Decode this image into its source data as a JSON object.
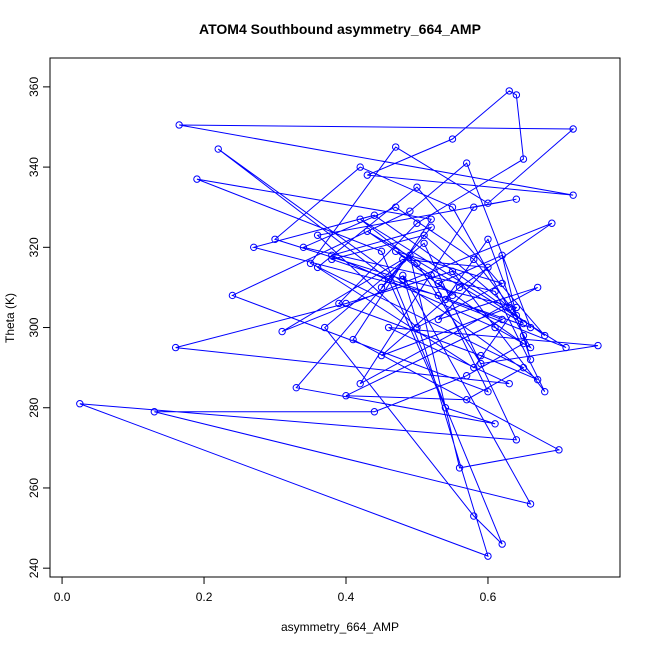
{
  "chart_data": {
    "type": "line",
    "markers": true,
    "title": "ATOM4 Southbound asymmetry_664_AMP",
    "xlabel": "asymmetry_664_AMP",
    "ylabel": "Theta (K)",
    "color": "#0000ff",
    "xlim": [
      -0.017,
      0.786
    ],
    "ylim": [
      237.8,
      367.2
    ],
    "xticks": [
      {
        "value": 0,
        "label": "0.0"
      },
      0.2,
      0.4,
      0.6
    ],
    "yticks": [
      240,
      260,
      280,
      300,
      320,
      340,
      360
    ],
    "x": [
      0.45,
      0.52,
      0.38,
      0.61,
      0.66,
      0.55,
      0.42,
      0.3,
      0.48,
      0.64,
      0.58,
      0.36,
      0.5,
      0.68,
      0.44,
      0.27,
      0.53,
      0.62,
      0.4,
      0.57,
      0.65,
      0.35,
      0.47,
      0.6,
      0.72,
      0.165,
      0.72,
      0.43,
      0.55,
      0.63,
      0.64,
      0.65,
      0.5,
      0.39,
      0.59,
      0.67,
      0.22,
      0.46,
      0.54,
      0.61,
      0.33,
      0.49,
      0.56,
      0.7,
      0.41,
      0.52,
      0.19,
      0.45,
      0.62,
      0.58,
      0.37,
      0.51,
      0.64,
      0.025,
      0.6,
      0.48,
      0.66,
      0.13,
      0.44,
      0.57,
      0.65,
      0.53,
      0.62,
      0.64,
      0.66,
      0.65,
      0.6,
      0.54,
      0.71,
      0.42,
      0.5,
      0.59,
      0.755,
      0.46,
      0.63,
      0.16,
      0.4,
      0.55,
      0.68,
      0.61,
      0.34,
      0.47,
      0.58,
      0.65,
      0.43,
      0.52,
      0.6,
      0.24,
      0.49,
      0.57,
      0.66,
      0.38,
      0.51,
      0.63,
      0.45,
      0.56,
      0.69,
      0.31,
      0.48,
      0.6,
      0.53,
      0.67,
      0.42,
      0.58,
      0.64,
      0.36,
      0.5,
      0.62,
      0.47,
      0.55
    ],
    "y": [
      310,
      325,
      318,
      300,
      295,
      330,
      340,
      322,
      312,
      305,
      290,
      315,
      335,
      298,
      328,
      320,
      308,
      302,
      283,
      282,
      290,
      316,
      345,
      331,
      349.5,
      350.5,
      333,
      338,
      347,
      359,
      358,
      342,
      326,
      306,
      293,
      287,
      344.5,
      312,
      280,
      276,
      285,
      318,
      265,
      269.5,
      297,
      327,
      337,
      319,
      246,
      253,
      300,
      321,
      272,
      281,
      243,
      313,
      256,
      279,
      279,
      288,
      296,
      311,
      318,
      303,
      292,
      298,
      322,
      307,
      295,
      327,
      316,
      291,
      295.5,
      300,
      286,
      295,
      306,
      314,
      284,
      309,
      320,
      330,
      317,
      301,
      324,
      313,
      284,
      308,
      329,
      341,
      300,
      317,
      323,
      305,
      293,
      310,
      326,
      299,
      317,
      315,
      302,
      310,
      286,
      330,
      332,
      323,
      300,
      311,
      319,
      308
    ]
  }
}
